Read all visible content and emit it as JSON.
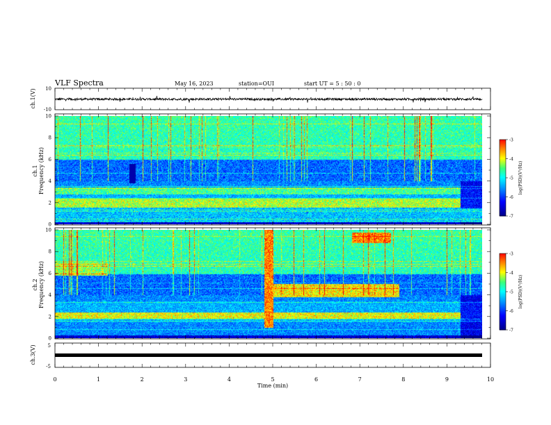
{
  "header": {
    "title": "VLF Spectra",
    "date": "May 16, 2023",
    "station": "station=OUI",
    "start": "start  UT =   5  : 50 : 0"
  },
  "colorbar": {
    "label": "log(PSD)(V²/Hz)",
    "ticks": [
      "-3",
      "-4",
      "-5",
      "-6",
      "-7"
    ],
    "colors": [
      "#000080",
      "#0000ff",
      "#0080ff",
      "#00ffff",
      "#40ff80",
      "#ffff00",
      "#ff8000",
      "#ff0000",
      "#ffffff"
    ]
  },
  "chart_data": [
    {
      "type": "line",
      "panel": "ch1-waveform",
      "ylabel": "ch.1(V)",
      "ylim": [
        -10,
        10
      ],
      "ytick_labels": [
        "10",
        "-10"
      ],
      "xlim": [
        0,
        10
      ],
      "trace": "noisy signal centred near 0 V with amplitude about ±1 V and sparse spikes to about ±3 V"
    },
    {
      "type": "heatmap",
      "panel": "ch1-spectrogram",
      "ylabel": "ch.1\nFrequency (kHz)",
      "ylim": [
        0,
        10
      ],
      "ytick_labels": [
        "0",
        "2",
        "4",
        "6",
        "8",
        "10"
      ],
      "xlim": [
        0,
        9.8
      ],
      "zlim": [
        -7,
        -3
      ],
      "features": [
        {
          "t": [
            0,
            9.3
          ],
          "f": [
            1.6,
            2.4
          ],
          "level": -4.2
        },
        {
          "t": [
            0,
            9.3
          ],
          "f": [
            2.8,
            3.4
          ],
          "level": -4.6
        },
        {
          "t": [
            0,
            9.8
          ],
          "f": [
            6.0,
            10.0
          ],
          "level": -4.8
        },
        {
          "t": [
            0,
            9.8
          ],
          "f": [
            4.0,
            6.0
          ],
          "level": -5.8
        },
        {
          "t": [
            0,
            9.8
          ],
          "f": [
            0.2,
            1.5
          ],
          "level": -5.3
        }
      ]
    },
    {
      "type": "heatmap",
      "panel": "ch2-spectrogram",
      "ylabel": "ch.2\nFrequency (kHz)",
      "ylim": [
        0,
        10
      ],
      "ytick_labels": [
        "0",
        "2",
        "4",
        "6",
        "8",
        "10"
      ],
      "xlim": [
        0,
        9.8
      ],
      "zlim": [
        -7,
        -3
      ],
      "features": [
        {
          "t": [
            0,
            9.3
          ],
          "f": [
            1.8,
            2.4
          ],
          "level": -4.0
        },
        {
          "t": [
            0,
            1.2
          ],
          "f": [
            5.8,
            7.0
          ],
          "level": -4.3
        },
        {
          "t": [
            5.0,
            7.9
          ],
          "f": [
            3.8,
            5.0
          ],
          "level": -3.9
        },
        {
          "t": [
            6.8,
            7.7
          ],
          "f": [
            8.8,
            9.8
          ],
          "level": -3.5
        },
        {
          "t": [
            0,
            9.8
          ],
          "f": [
            6.0,
            10.0
          ],
          "level": -4.8
        },
        {
          "t": [
            0,
            9.8
          ],
          "f": [
            4.0,
            6.0
          ],
          "level": -5.8
        }
      ]
    },
    {
      "type": "line",
      "panel": "ch3-waveform",
      "ylabel": "ch.3(V)",
      "ylim": [
        -5,
        5
      ],
      "ytick_labels": [
        "5",
        "-5"
      ],
      "xlim": [
        0,
        10
      ],
      "trace": "thick flat line at about 0 V"
    }
  ],
  "xaxis": {
    "label": "Time (min)",
    "ticks": [
      "0",
      "1",
      "2",
      "3",
      "4",
      "5",
      "6",
      "7",
      "8",
      "9",
      "10"
    ]
  }
}
